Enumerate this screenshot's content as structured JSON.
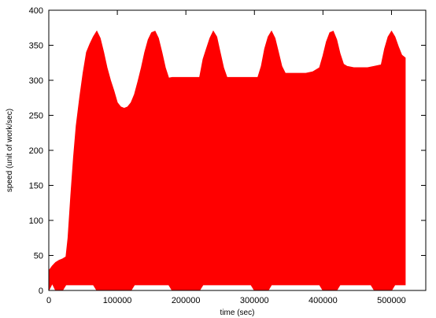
{
  "chart_data": {
    "type": "area",
    "title": "",
    "xlabel": "time (sec)",
    "ylabel": "speed (unit of work/sec)",
    "xlim": [
      0,
      550000
    ],
    "ylim": [
      0,
      400
    ],
    "x_ticks": [
      0,
      100000,
      200000,
      300000,
      400000,
      500000
    ],
    "y_ticks": [
      0,
      50,
      100,
      150,
      200,
      250,
      300,
      350,
      400
    ],
    "x_tick_labels": [
      "0",
      "100000",
      "200000",
      "300000",
      "400000",
      "500000"
    ],
    "y_tick_labels": [
      "0",
      "50",
      "100",
      "150",
      "200",
      "250",
      "300",
      "350",
      "400"
    ],
    "grid": false,
    "legend": "none",
    "fill_color": "#ff0000",
    "series": [
      {
        "envelope": [
          [
            0,
            28
          ],
          [
            5000,
            35
          ],
          [
            10000,
            40
          ],
          [
            15000,
            43
          ],
          [
            20000,
            45
          ],
          [
            25000,
            48
          ],
          [
            28000,
            75
          ],
          [
            32000,
            135
          ],
          [
            36000,
            190
          ],
          [
            40000,
            235
          ],
          [
            45000,
            275
          ],
          [
            50000,
            310
          ],
          [
            55000,
            340
          ],
          [
            60000,
            352
          ],
          [
            65000,
            362
          ],
          [
            70000,
            370
          ],
          [
            75000,
            360
          ],
          [
            80000,
            340
          ],
          [
            85000,
            318
          ],
          [
            90000,
            300
          ],
          [
            95000,
            285
          ],
          [
            100000,
            268
          ],
          [
            105000,
            262
          ],
          [
            110000,
            260
          ],
          [
            115000,
            262
          ],
          [
            120000,
            268
          ],
          [
            125000,
            280
          ],
          [
            130000,
            298
          ],
          [
            135000,
            318
          ],
          [
            140000,
            340
          ],
          [
            145000,
            358
          ],
          [
            150000,
            368
          ],
          [
            155000,
            370
          ],
          [
            160000,
            360
          ],
          [
            165000,
            340
          ],
          [
            170000,
            318
          ],
          [
            175000,
            303
          ],
          [
            180000,
            304
          ],
          [
            185000,
            304
          ],
          [
            190000,
            304
          ],
          [
            195000,
            304
          ],
          [
            200000,
            304
          ],
          [
            205000,
            304
          ],
          [
            210000,
            304
          ],
          [
            215000,
            304
          ],
          [
            220000,
            304
          ],
          [
            225000,
            330
          ],
          [
            230000,
            345
          ],
          [
            235000,
            360
          ],
          [
            240000,
            370
          ],
          [
            245000,
            362
          ],
          [
            250000,
            340
          ],
          [
            255000,
            318
          ],
          [
            260000,
            304
          ],
          [
            270000,
            304
          ],
          [
            280000,
            304
          ],
          [
            290000,
            304
          ],
          [
            300000,
            304
          ],
          [
            305000,
            304
          ],
          [
            310000,
            320
          ],
          [
            315000,
            345
          ],
          [
            320000,
            362
          ],
          [
            325000,
            370
          ],
          [
            330000,
            360
          ],
          [
            335000,
            340
          ],
          [
            340000,
            320
          ],
          [
            345000,
            310
          ],
          [
            355000,
            310
          ],
          [
            365000,
            310
          ],
          [
            375000,
            310
          ],
          [
            385000,
            312
          ],
          [
            395000,
            318
          ],
          [
            400000,
            335
          ],
          [
            405000,
            355
          ],
          [
            410000,
            368
          ],
          [
            415000,
            370
          ],
          [
            420000,
            358
          ],
          [
            425000,
            338
          ],
          [
            430000,
            323
          ],
          [
            435000,
            320
          ],
          [
            445000,
            318
          ],
          [
            455000,
            318
          ],
          [
            465000,
            318
          ],
          [
            475000,
            320
          ],
          [
            485000,
            322
          ],
          [
            490000,
            345
          ],
          [
            495000,
            362
          ],
          [
            500000,
            370
          ],
          [
            505000,
            362
          ],
          [
            510000,
            348
          ],
          [
            515000,
            336
          ],
          [
            520000,
            332
          ]
        ],
        "floor": [
          [
            0,
            0
          ],
          [
            5000,
            10
          ],
          [
            10000,
            0
          ],
          [
            20000,
            0
          ],
          [
            25000,
            8
          ],
          [
            65000,
            8
          ],
          [
            70000,
            0
          ],
          [
            120000,
            0
          ],
          [
            125000,
            8
          ],
          [
            175000,
            8
          ],
          [
            180000,
            0
          ],
          [
            220000,
            0
          ],
          [
            225000,
            8
          ],
          [
            295000,
            8
          ],
          [
            300000,
            0
          ],
          [
            320000,
            0
          ],
          [
            325000,
            8
          ],
          [
            395000,
            8
          ],
          [
            400000,
            0
          ],
          [
            420000,
            0
          ],
          [
            425000,
            8
          ],
          [
            470000,
            8
          ],
          [
            475000,
            0
          ],
          [
            500000,
            0
          ],
          [
            505000,
            8
          ],
          [
            520000,
            8
          ]
        ]
      }
    ]
  }
}
